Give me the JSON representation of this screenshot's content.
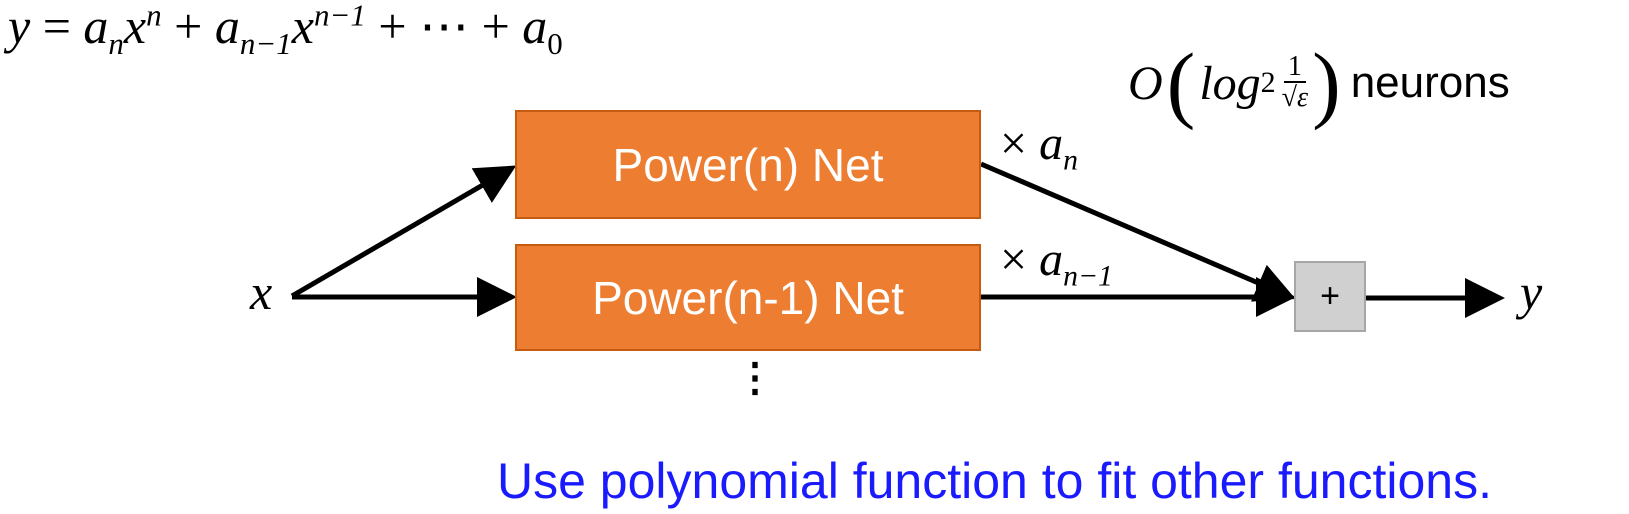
{
  "formula": {
    "lhs": "y",
    "eq": "=",
    "a": "a",
    "n": "n",
    "x": "x",
    "plus": "+",
    "nm1": "n−1",
    "dots": "⋯",
    "zero": "0"
  },
  "complexity": {
    "O": "O",
    "open": "(",
    "close": ")",
    "log": "log",
    "base": "2",
    "num": "1",
    "den": "√ε",
    "label": "neurons"
  },
  "boxes": {
    "power_n": "Power(n) Net",
    "power_n1": "Power(n-1) Net"
  },
  "coefficients": {
    "times": "×",
    "a": "a",
    "n": "n",
    "nm1": "n−1"
  },
  "io": {
    "input": "x",
    "output": "y"
  },
  "sum_symbol": "+",
  "ellipsis": "⋮",
  "caption": "Use polynomial function to fit other functions.",
  "colors": {
    "box_fill": "#ed7d31",
    "box_border": "#c55a11",
    "sum_fill": "#d0d0d0",
    "caption": "#1a1aff"
  }
}
